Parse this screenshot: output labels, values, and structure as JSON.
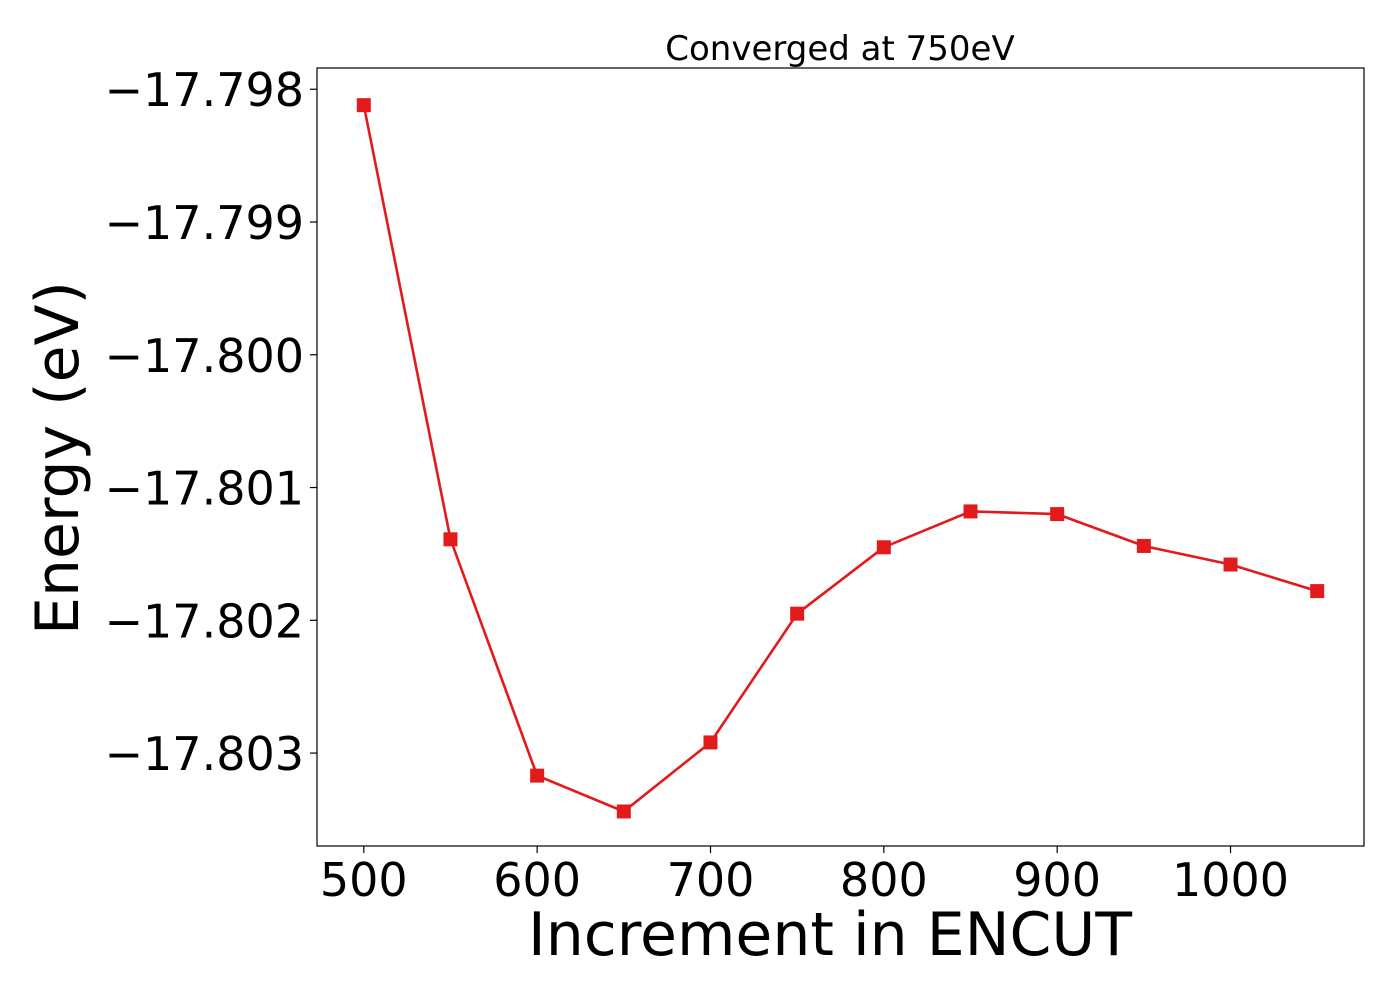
{
  "chart_data": {
    "type": "line",
    "title": "Converged at 750eV",
    "xlabel": "Increment in ENCUT",
    "ylabel": "Energy (eV)",
    "xlim": [
      473,
      1077
    ],
    "ylim": [
      -17.8037,
      -17.79784
    ],
    "xticks": [
      500,
      600,
      700,
      800,
      900,
      1000
    ],
    "yticks": [
      -17.798,
      -17.799,
      -17.8,
      -17.801,
      -17.802,
      -17.803
    ],
    "ytick_labels": [
      "−17.798",
      "−17.799",
      "−17.800",
      "−17.801",
      "−17.802",
      "−17.803"
    ],
    "grid": false,
    "marker": "square",
    "series": [
      {
        "color": "#e31a1c",
        "x": [
          500,
          550,
          600,
          650,
          700,
          750,
          800,
          850,
          900,
          950,
          1000,
          1050
        ],
        "y": [
          -17.79812,
          -17.80139,
          -17.80317,
          -17.80344,
          -17.80292,
          -17.80195,
          -17.80145,
          -17.80118,
          -17.8012,
          -17.80144,
          -17.80158,
          -17.80178
        ]
      }
    ]
  }
}
